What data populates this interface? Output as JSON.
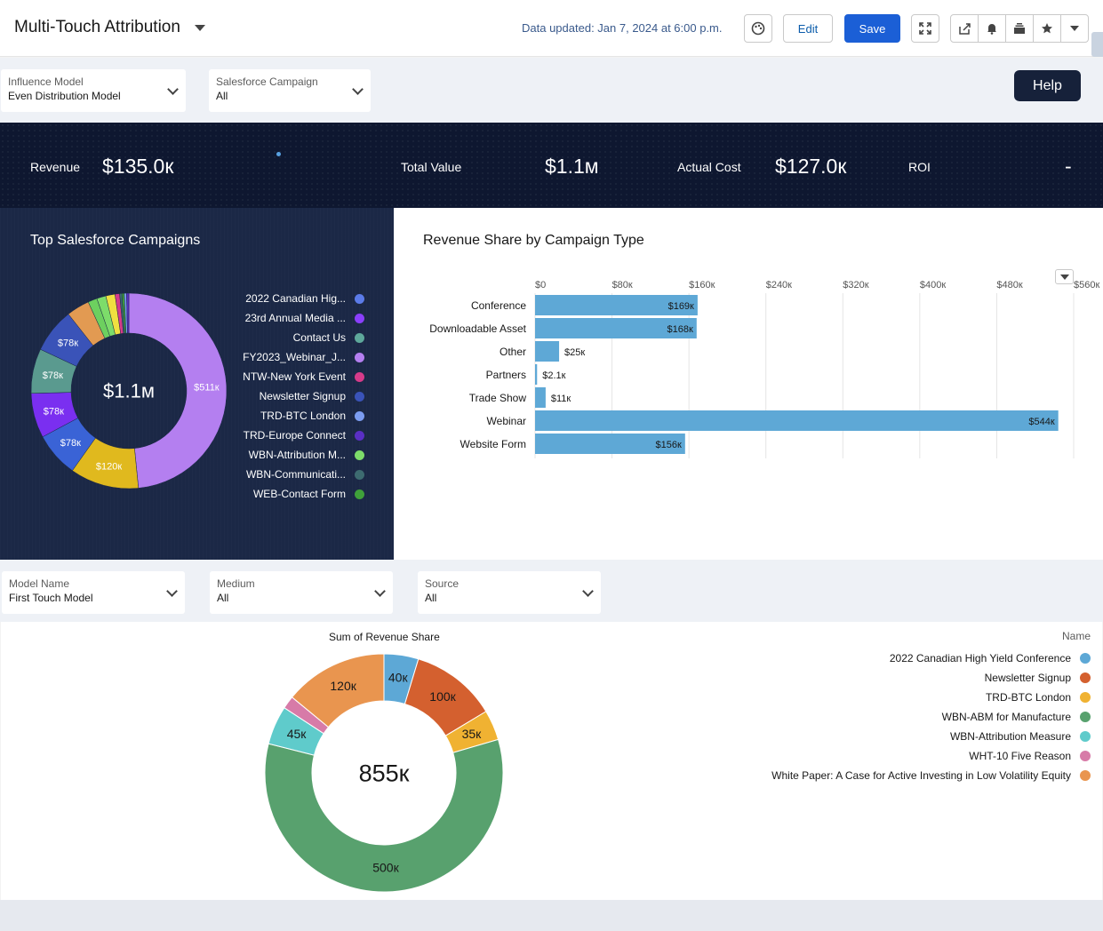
{
  "header": {
    "title": "Multi-Touch Attribution",
    "updated": "Data updated: Jan 7, 2024 at 6:00 p.m.",
    "edit_label": "Edit",
    "save_label": "Save"
  },
  "filters_top": [
    {
      "label": "Influence Model",
      "value": "Even Distribution Model"
    },
    {
      "label": "Salesforce Campaign",
      "value": "All"
    }
  ],
  "help_label": "Help",
  "kpis": [
    {
      "label": "Revenue",
      "value": "$135.0к"
    },
    {
      "label": "Total Value",
      "value": "$1.1м"
    },
    {
      "label": "Actual Cost",
      "value": "$127.0к"
    },
    {
      "label": "ROI",
      "value": "-"
    }
  ],
  "left_panel": {
    "title": "Top Salesforce Campaigns",
    "center": "$1.1м",
    "legend": [
      {
        "name": "2022 Canadian Hig...",
        "color": "#5b7be8"
      },
      {
        "name": "23rd Annual Media ...",
        "color": "#8a3ffc"
      },
      {
        "name": "Contact Us",
        "color": "#5ea89b"
      },
      {
        "name": "FY2023_Webinar_J...",
        "color": "#b47ff0"
      },
      {
        "name": "NTW-New York Event",
        "color": "#d63b8a"
      },
      {
        "name": "Newsletter Signup",
        "color": "#3a53b8"
      },
      {
        "name": "TRD-BTC London",
        "color": "#7b9cf0"
      },
      {
        "name": "TRD-Europe Connect",
        "color": "#5a2fc4"
      },
      {
        "name": "WBN-Attribution M...",
        "color": "#7ddc6a"
      },
      {
        "name": "WBN-Communicati...",
        "color": "#3d6b70"
      },
      {
        "name": "WEB-Contact Form",
        "color": "#3fa03a"
      }
    ]
  },
  "right_panel": {
    "title": "Revenue Share by Campaign Type"
  },
  "filters_bottom": [
    {
      "label": "Model Name",
      "value": "First Touch Model"
    },
    {
      "label": "Medium",
      "value": "All"
    },
    {
      "label": "Source",
      "value": "All"
    }
  ],
  "bottom_panel": {
    "title": "Sum of Revenue Share",
    "legend_title": "Name",
    "center": "855к",
    "legend": [
      {
        "name": "2022 Canadian High Yield Conference",
        "color": "#5da8d6"
      },
      {
        "name": "Newsletter Signup",
        "color": "#d4602f"
      },
      {
        "name": "TRD-BTC London",
        "color": "#f0b232"
      },
      {
        "name": "WBN-ABM for Manufacture",
        "color": "#58a16e"
      },
      {
        "name": "WBN-Attribution Measure",
        "color": "#5fcbcb"
      },
      {
        "name": "WHT-10 Five Reason",
        "color": "#d77ba8"
      },
      {
        "name": "White Paper: A Case for Active Investing in Low Volatility Equity",
        "color": "#e9954f"
      }
    ]
  },
  "chart_data": [
    {
      "type": "pie",
      "title": "Top Salesforce Campaigns",
      "center_label": "$1.1м",
      "slices": [
        {
          "value": 511,
          "label": "$511к",
          "color": "#b47ff0"
        },
        {
          "value": 120,
          "label": "$120к",
          "color": "#e0b91e"
        },
        {
          "value": 78,
          "label": "$78к",
          "color": "#3a63d6"
        },
        {
          "value": 78,
          "label": "$78к",
          "color": "#7a2ff0"
        },
        {
          "value": 78,
          "label": "$78к",
          "color": "#5a9a8f"
        },
        {
          "value": 78,
          "label": "$78к",
          "color": "#3a53b8"
        },
        {
          "value": 40,
          "label": "",
          "color": "#e29a52"
        },
        {
          "value": 16,
          "label": "",
          "color": "#6dd05f"
        },
        {
          "value": 16,
          "label": "",
          "color": "#7ddc6a"
        },
        {
          "value": 16,
          "label": "",
          "color": "#f0e040"
        },
        {
          "value": 8,
          "label": "",
          "color": "#d63b8a"
        },
        {
          "value": 4,
          "label": "",
          "color": "#3d6b70"
        },
        {
          "value": 4,
          "label": "",
          "color": "#3fa03a"
        },
        {
          "value": 4,
          "label": "",
          "color": "#7b9cf0"
        },
        {
          "value": 4,
          "label": "",
          "color": "#5a2fc4"
        }
      ]
    },
    {
      "type": "bar",
      "orientation": "horizontal",
      "title": "Revenue Share by Campaign Type",
      "categories": [
        "Conference",
        "Downloadable Asset",
        "Other",
        "Partners",
        "Trade Show",
        "Webinar",
        "Website Form"
      ],
      "values": [
        169,
        168,
        25,
        2.1,
        11,
        544,
        156
      ],
      "value_labels": [
        "$169к",
        "$168к",
        "$25к",
        "$2.1к",
        "$11к",
        "$544к",
        "$156к"
      ],
      "ticks": [
        "$0",
        "$80к",
        "$160к",
        "$240к",
        "$320к",
        "$400к",
        "$480к",
        "$560к"
      ],
      "xlim": [
        0,
        560
      ],
      "color": "#5ea8d6"
    },
    {
      "type": "pie",
      "title": "Sum of Revenue Share",
      "center_label": "855к",
      "slices": [
        {
          "name": "2022 Canadian High Yield Conference",
          "value": 40,
          "label": "40к",
          "color": "#5da8d6"
        },
        {
          "name": "Newsletter Signup",
          "value": 100,
          "label": "100к",
          "color": "#d4602f"
        },
        {
          "name": "TRD-BTC London",
          "value": 35,
          "label": "35к",
          "color": "#f0b232"
        },
        {
          "name": "WBN-ABM for Manufacture",
          "value": 500,
          "label": "500к",
          "color": "#58a16e"
        },
        {
          "name": "WBN-Attribution Measure",
          "value": 45,
          "label": "45к",
          "color": "#5fcbcb"
        },
        {
          "name": "WHT-10 Five Reason",
          "value": 15,
          "label": "",
          "color": "#d77ba8"
        },
        {
          "name": "White Paper: A Case for Active Investing in Low Volatility Equity",
          "value": 120,
          "label": "120к",
          "color": "#e9954f"
        }
      ]
    }
  ]
}
